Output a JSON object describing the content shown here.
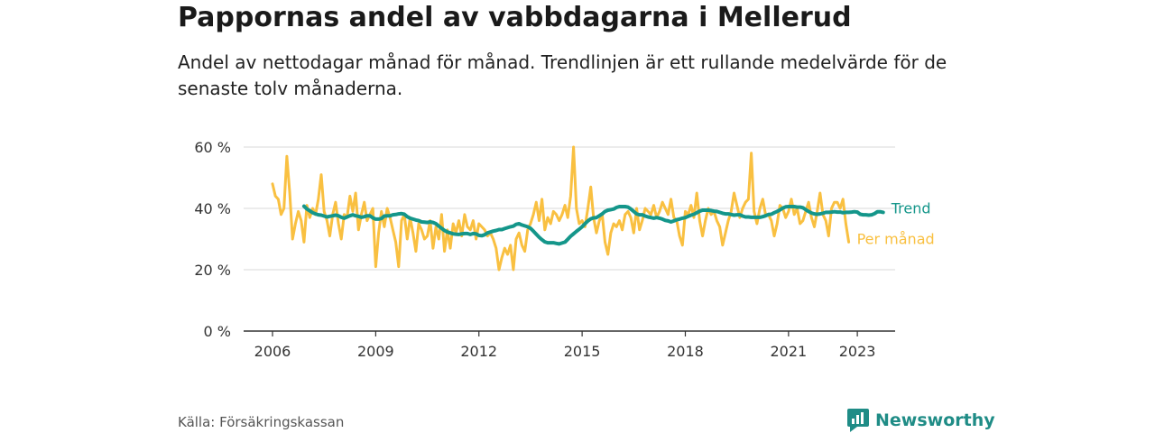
{
  "title": "Pappornas andel av vabbdagarna i Mellerud",
  "subtitle": "Andel av nettodagar månad för månad. Trendlinjen är ett rullande medelvärde för de senaste tolv månaderna.",
  "source": "Källa: Försäkringskassan",
  "brand": {
    "name": "Newsworthy",
    "color": "#1f8c86"
  },
  "colors": {
    "trend": "#14968a",
    "monthly": "#f9c041",
    "grid": "#d9d9d9",
    "axis": "#333333"
  },
  "chart_data": {
    "type": "line",
    "title": "Pappornas andel av vabbdagarna i Mellerud",
    "xlabel": "",
    "ylabel": "",
    "x_start": "2006-01",
    "x_end": "2023-06",
    "ylim": [
      0,
      60
    ],
    "y_ticks": [
      0,
      20,
      40,
      60
    ],
    "y_tick_labels": [
      "0 %",
      "20 %",
      "40 %",
      "60 %"
    ],
    "x_ticks": [
      2006,
      2009,
      2012,
      2015,
      2018,
      2021,
      2023
    ],
    "x_tick_labels": [
      "2006",
      "2009",
      "2012",
      "2015",
      "2018",
      "2021",
      "2023"
    ],
    "grid": "horizontal",
    "legend": "inline labels at right end of lines",
    "series": [
      {
        "name": "Per månad",
        "start": "2006-01",
        "values": [
          48,
          44,
          43,
          38,
          40,
          57,
          45,
          30,
          35,
          39,
          36,
          29,
          41,
          37,
          40,
          38,
          43,
          51,
          39,
          36,
          31,
          38,
          42,
          35,
          30,
          38,
          37,
          44,
          39,
          45,
          33,
          38,
          42,
          36,
          38,
          40,
          21,
          32,
          39,
          34,
          40,
          37,
          33,
          29,
          21,
          36,
          38,
          30,
          37,
          32,
          26,
          35,
          33,
          30,
          31,
          36,
          27,
          34,
          30,
          38,
          26,
          33,
          27,
          35,
          32,
          36,
          31,
          38,
          34,
          33,
          36,
          30,
          35,
          34,
          33,
          31,
          32,
          30,
          27,
          20,
          24,
          27,
          25,
          28,
          20,
          30,
          32,
          28,
          26,
          33,
          35,
          38,
          42,
          36,
          43,
          33,
          37,
          35,
          39,
          38,
          36,
          38,
          41,
          37,
          44,
          60,
          40,
          35,
          36,
          34,
          40,
          47,
          37,
          32,
          36,
          38,
          29,
          25,
          32,
          35,
          34,
          36,
          33,
          38,
          39,
          37,
          32,
          40,
          33,
          36,
          40,
          39,
          38,
          41,
          37,
          39,
          42,
          40,
          38,
          43,
          37,
          36,
          31,
          28,
          39,
          38,
          41,
          37,
          45,
          36,
          31,
          36,
          40,
          38,
          39,
          36,
          34,
          28,
          32,
          36,
          39,
          45,
          41,
          37,
          40,
          42,
          43,
          58,
          39,
          35,
          40,
          43,
          38,
          38,
          36,
          31,
          35,
          41,
          40,
          37,
          39,
          43,
          38,
          40,
          35,
          36,
          39,
          42,
          37,
          34,
          39,
          45,
          38,
          36,
          31,
          40,
          42,
          42,
          40,
          43,
          35,
          29
        ]
      },
      {
        "name": "Trend",
        "start": "2006-12",
        "values": [
          40.7,
          39.8,
          39.2,
          38.6,
          38.2,
          37.9,
          37.8,
          37.5,
          37.2,
          37.4,
          37.6,
          37.8,
          37.6,
          37.1,
          36.8,
          37.2,
          37.6,
          37.9,
          37.6,
          37.4,
          37.1,
          37.3,
          37.6,
          37.6,
          36.9,
          36.5,
          36.5,
          36.7,
          37.5,
          37.6,
          37.6,
          37.9,
          38.0,
          38.2,
          38.3,
          38.1,
          37.3,
          36.8,
          36.5,
          36.2,
          36.0,
          35.6,
          35.5,
          35.4,
          35.6,
          35.4,
          35.0,
          34.2,
          33.5,
          32.8,
          32.3,
          32.0,
          31.7,
          31.6,
          31.5,
          31.7,
          31.8,
          31.8,
          31.5,
          31.8,
          31.7,
          31.2,
          31.1,
          31.4,
          32.0,
          32.3,
          32.6,
          32.8,
          33.1,
          33.1,
          33.4,
          33.7,
          34.0,
          34.2,
          34.8,
          35.0,
          34.6,
          34.3,
          34.0,
          33.5,
          32.6,
          31.6,
          30.6,
          29.8,
          29.1,
          28.8,
          28.8,
          28.8,
          28.6,
          28.4,
          28.7,
          29.0,
          29.9,
          30.9,
          31.7,
          32.5,
          33.2,
          34.0,
          35.0,
          35.9,
          36.6,
          36.9,
          37.0,
          37.6,
          38.2,
          39.0,
          39.4,
          39.6,
          39.8,
          40.3,
          40.6,
          40.6,
          40.6,
          40.4,
          39.8,
          39.0,
          38.2,
          37.9,
          37.9,
          37.5,
          37.2,
          37.0,
          36.8,
          37.0,
          36.8,
          36.5,
          36.1,
          35.9,
          35.6,
          35.9,
          36.3,
          36.5,
          36.8,
          37.0,
          37.4,
          37.8,
          38.1,
          38.6,
          39.1,
          39.4,
          39.4,
          39.4,
          39.3,
          39.1,
          39.0,
          38.7,
          38.4,
          38.2,
          38.2,
          38.0,
          37.8,
          37.9,
          37.9,
          37.5,
          37.2,
          37.2,
          37.1,
          37.1,
          37.1,
          37.1,
          37.3,
          37.6,
          38.0,
          38.1,
          38.6,
          39.0,
          39.5,
          40.1,
          40.5,
          40.6,
          40.6,
          40.6,
          40.4,
          40.4,
          40.2,
          39.6,
          39.0,
          38.5,
          38.2,
          38.1,
          38.2,
          38.4,
          38.7,
          38.7,
          38.8,
          38.9,
          38.8,
          38.8,
          38.6,
          38.7,
          38.7,
          38.8,
          38.9,
          38.8,
          38.1,
          37.9,
          37.9,
          37.8,
          37.9,
          38.3,
          38.9,
          38.9,
          38.7
        ]
      }
    ]
  }
}
